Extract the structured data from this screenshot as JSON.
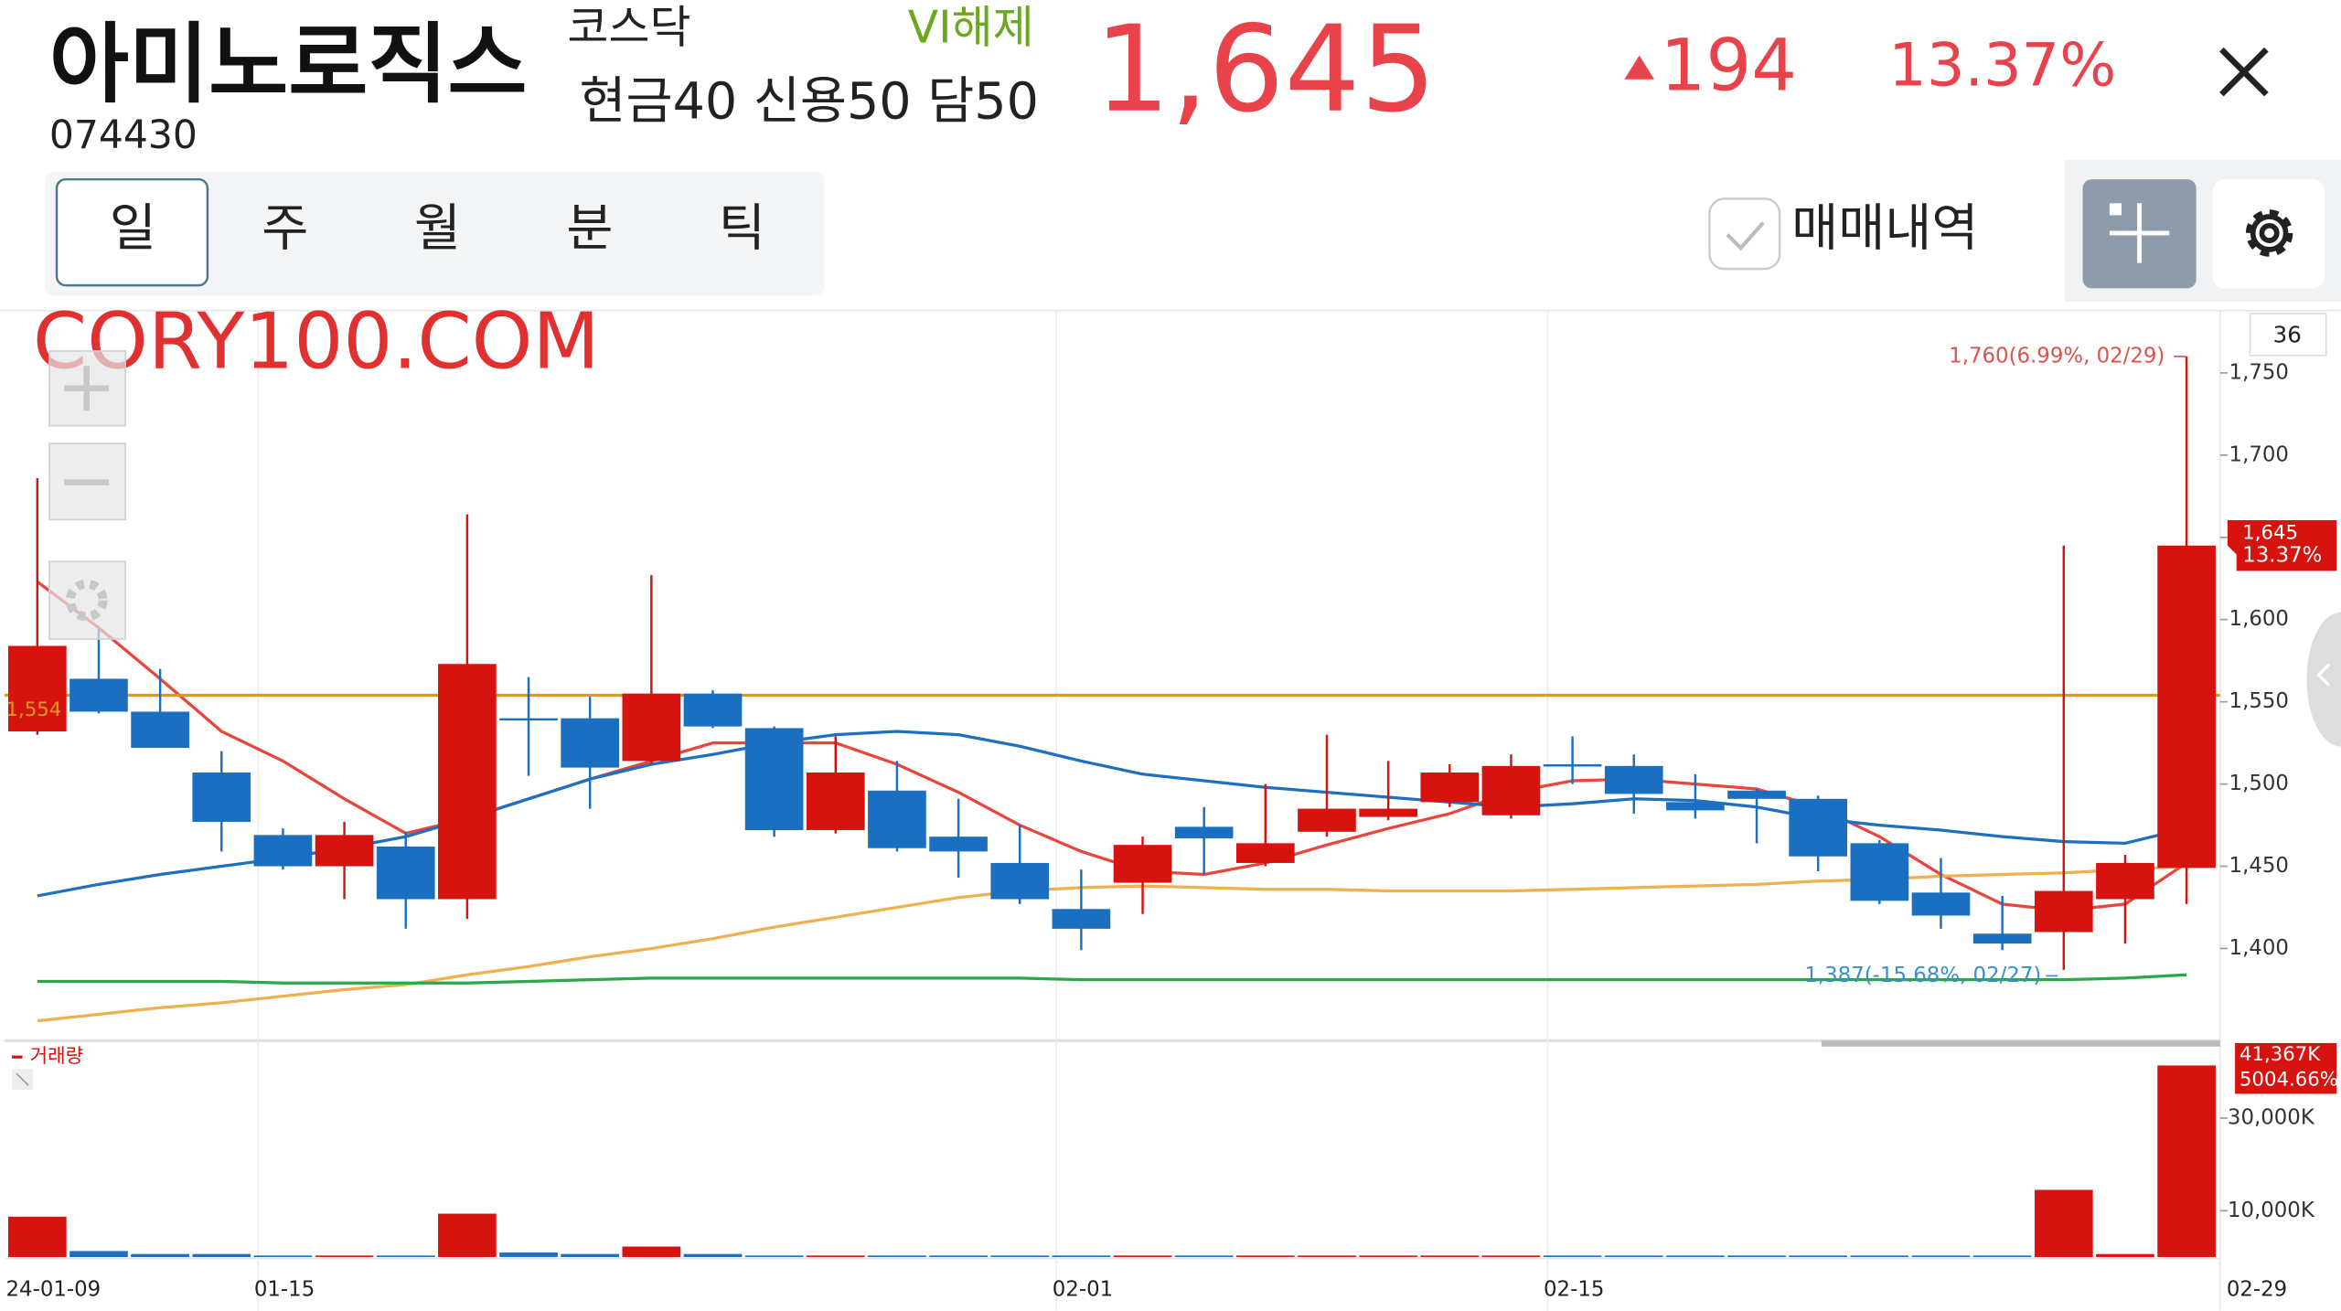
{
  "header": {
    "name": "아미노로직스",
    "code": "074430",
    "market": "코스닥",
    "vi": "VI해제",
    "margin": "현금40 신용50 담50",
    "price": "1,645",
    "change": "194",
    "change_rate": "13.37%"
  },
  "tabs": [
    "일",
    "주",
    "월",
    "분",
    "틱"
  ],
  "trade_history": "매매내역",
  "watermark": "CORY100.COM",
  "chart_data": {
    "type": "candlestick",
    "count_label": "36",
    "categories": [
      "24-01-09",
      null,
      null,
      null,
      "01-15",
      null,
      null,
      null,
      null,
      null,
      null,
      null,
      null,
      null,
      null,
      null,
      null,
      "02-01",
      null,
      null,
      null,
      null,
      null,
      null,
      null,
      "02-15",
      null,
      null,
      null,
      null,
      null,
      null,
      null,
      null,
      null,
      "02-29"
    ],
    "open": [
      1532,
      1564,
      1544,
      1507,
      1469,
      1450,
      1462,
      1430,
      1540,
      1540,
      1514,
      1555,
      1534,
      1472,
      1496,
      1468,
      1452,
      1424,
      1440,
      1474,
      1452,
      1471,
      1480,
      1489,
      1481,
      1512,
      1511,
      1489,
      1496,
      1491,
      1464,
      1434,
      1409,
      1410,
      1430,
      1449
    ],
    "high": [
      1686,
      1595,
      1570,
      1520,
      1473,
      1477,
      1471,
      1664,
      1565,
      1553,
      1627,
      1557,
      1535,
      1529,
      1514,
      1491,
      1475,
      1448,
      1468,
      1486,
      1500,
      1530,
      1514,
      1512,
      1518,
      1529,
      1518,
      1506,
      1497,
      1493,
      1466,
      1455,
      1432,
      1645,
      1457,
      1760
    ],
    "low": [
      1530,
      1543,
      1522,
      1459,
      1448,
      1430,
      1412,
      1418,
      1505,
      1485,
      1512,
      1534,
      1468,
      1470,
      1459,
      1443,
      1427,
      1399,
      1421,
      1445,
      1450,
      1468,
      1478,
      1486,
      1479,
      1500,
      1482,
      1479,
      1464,
      1447,
      1427,
      1412,
      1399,
      1387,
      1403,
      1427
    ],
    "close": [
      1584,
      1544,
      1522,
      1477,
      1450,
      1469,
      1430,
      1573,
      1539,
      1510,
      1555,
      1535,
      1472,
      1507,
      1461,
      1459,
      1430,
      1412,
      1463,
      1467,
      1464,
      1485,
      1485,
      1507,
      1511,
      1511,
      1494,
      1484,
      1491,
      1456,
      1429,
      1420,
      1403,
      1435,
      1452,
      1645
    ],
    "up_color": "#d7130f",
    "down_color": "#1a6fc0",
    "lines": [
      {
        "color": "#e8453c",
        "values": [
          1623,
          1595,
          1564,
          1532,
          1514,
          1491,
          1470,
          1479,
          1491,
          1503,
          1514,
          1525,
          1525,
          1525,
          1512,
          1495,
          1475,
          1459,
          1447,
          1445,
          1452,
          1463,
          1473,
          1482,
          1495,
          1502,
          1503,
          1500,
          1497,
          1486,
          1468,
          1445,
          1427,
          1423,
          1427,
          1452
        ]
      },
      {
        "color": "#1f6fc0",
        "values": [
          1432,
          1439,
          1445,
          1450,
          1455,
          1461,
          1468,
          1479,
          1491,
          1503,
          1512,
          1518,
          1525,
          1530,
          1532,
          1530,
          1523,
          1514,
          1506,
          1502,
          1498,
          1495,
          1492,
          1489,
          1486,
          1488,
          1491,
          1490,
          1486,
          1479,
          1475,
          1472,
          1468,
          1465,
          1464,
          1473
        ]
      },
      {
        "color": "#f0b050",
        "values": [
          1356,
          1360,
          1364,
          1367,
          1371,
          1375,
          1378,
          1384,
          1389,
          1395,
          1400,
          1406,
          1413,
          1419,
          1425,
          1431,
          1435,
          1437,
          1438,
          1437,
          1436,
          1436,
          1435,
          1435,
          1435,
          1436,
          1437,
          1438,
          1439,
          1441,
          1442,
          1444,
          1445,
          1446,
          1448,
          1450
        ]
      },
      {
        "color": "#2aa84a",
        "values": [
          1380,
          1380,
          1380,
          1380,
          1379,
          1379,
          1379,
          1379,
          1380,
          1381,
          1382,
          1382,
          1382,
          1382,
          1382,
          1382,
          1382,
          1381,
          1381,
          1381,
          1381,
          1381,
          1381,
          1381,
          1381,
          1381,
          1381,
          1381,
          1381,
          1381,
          1381,
          1381,
          1381,
          1381,
          1382,
          1384
        ]
      }
    ],
    "reference_line": {
      "value": 1554,
      "label": "1,554",
      "color": "#e09a1a"
    },
    "ylim": [
      1344,
      1786
    ],
    "yticks": [
      {
        "value": 1400,
        "label": "1,400"
      },
      {
        "value": 1450,
        "label": "1,450"
      },
      {
        "value": 1500,
        "label": "1,500"
      },
      {
        "value": 1550,
        "label": "1,550"
      },
      {
        "value": 1600,
        "label": "1,600"
      },
      {
        "value": 1650,
        "label": "1,650"
      },
      {
        "value": 1700,
        "label": "1,700"
      },
      {
        "value": 1750,
        "label": "1,750"
      }
    ],
    "grid": false,
    "high_annotation": "1,760(6.99%, 02/29)",
    "low_annotation": "1,387(-15.68%, 02/27)",
    "current_label": "1,645",
    "current_rate_label": "13.37%",
    "volume_title": "거래량",
    "volume": [
      8710,
      1290,
      650,
      650,
      320,
      320,
      320,
      9360,
      970,
      650,
      2260,
      650,
      320,
      320,
      320,
      320,
      320,
      320,
      320,
      320,
      320,
      320,
      320,
      320,
      320,
      320,
      320,
      320,
      320,
      320,
      320,
      320,
      320,
      14500,
      650,
      41367
    ],
    "volume_ylim": [
      0,
      44800
    ],
    "volume_yticks": [
      {
        "value": 10000,
        "label": "10,000K"
      },
      {
        "value": 30000,
        "label": "30,000K"
      }
    ],
    "volume_label": "41,367K",
    "volume_rate_label": "5004.66%"
  }
}
